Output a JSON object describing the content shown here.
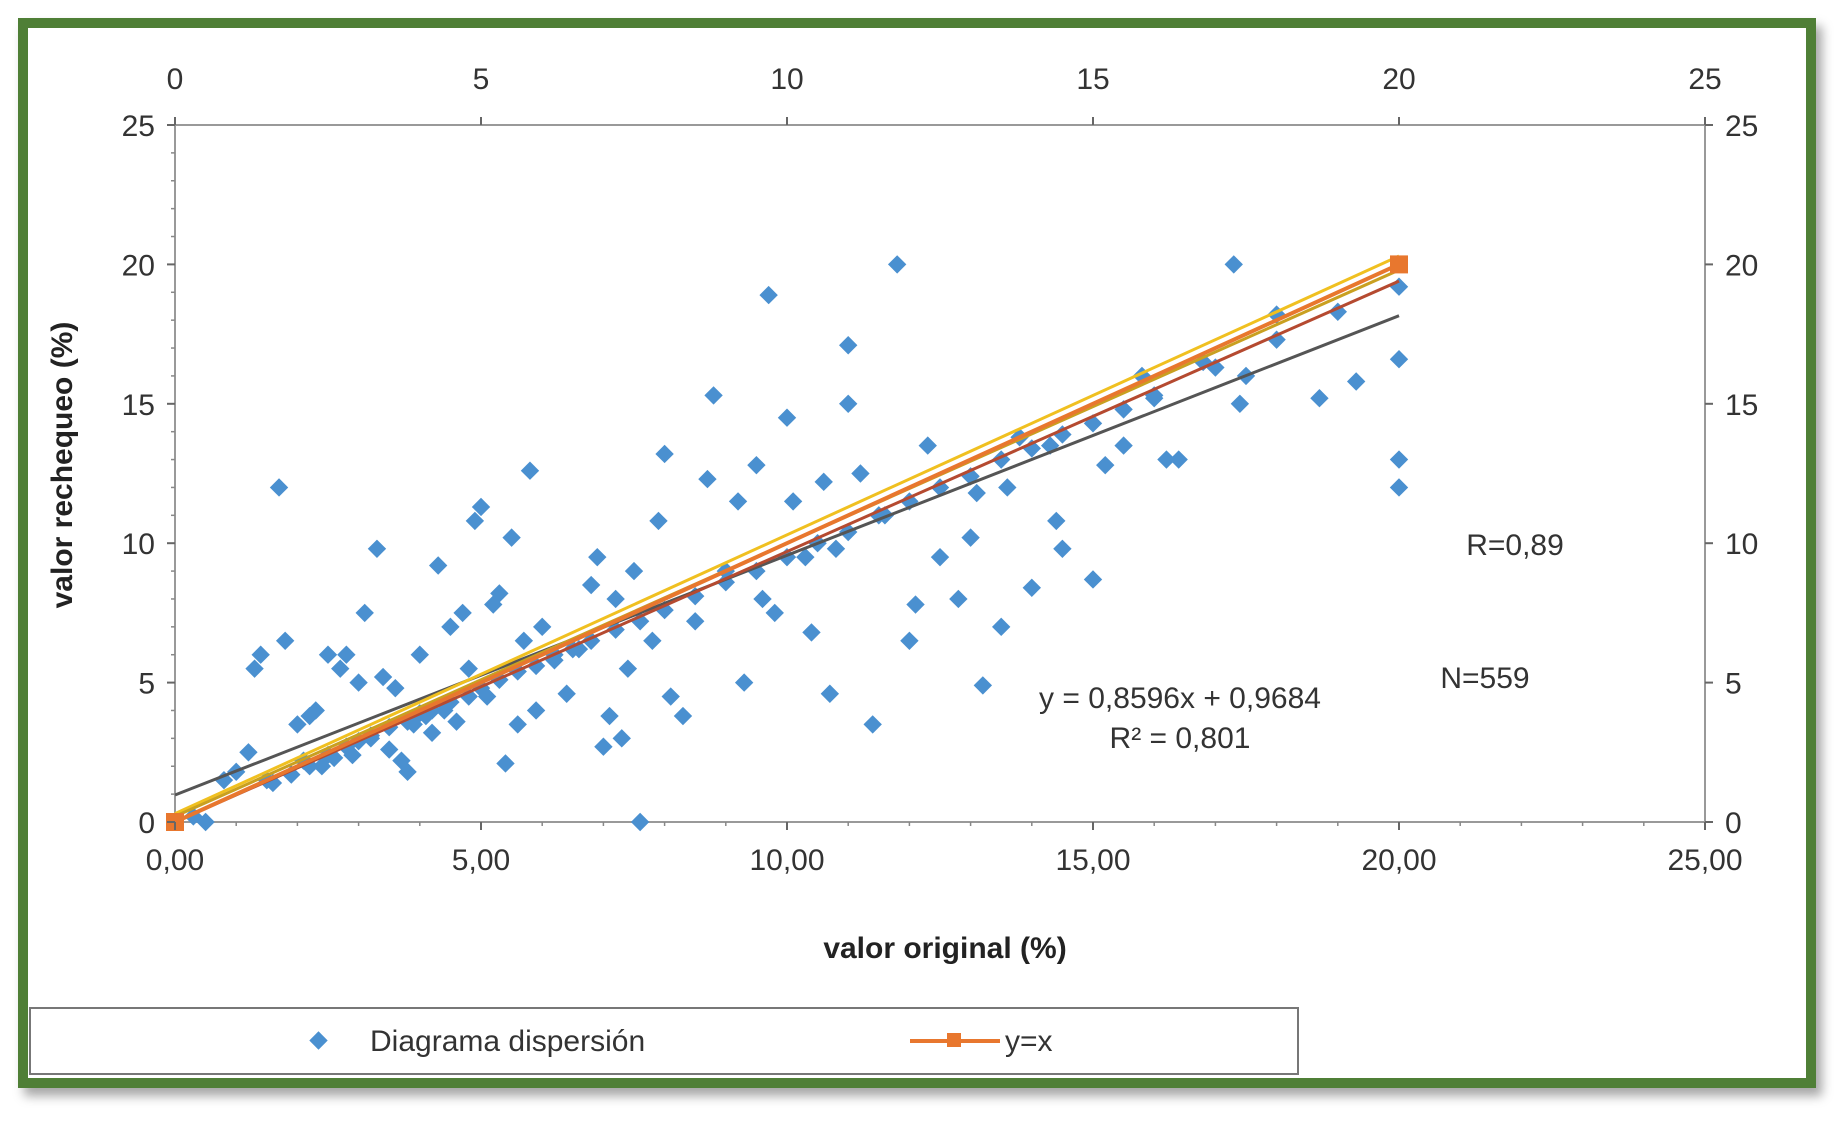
{
  "chart_data": {
    "type": "scatter",
    "xlabel": "valor original (%)",
    "ylabel": "valor rechequeo (%)",
    "xlim": [
      0,
      25
    ],
    "ylim": [
      0,
      25
    ],
    "x_ticks": [
      "0,00",
      "5,00",
      "10,00",
      "15,00",
      "20,00",
      "25,00"
    ],
    "y_ticks": [
      "0",
      "5",
      "10",
      "15",
      "20",
      "25"
    ],
    "x2_ticks": [
      "0",
      "5",
      "10",
      "15",
      "20",
      "25"
    ],
    "y2_ticks": [
      "0",
      "5",
      "10",
      "15",
      "20",
      "25"
    ],
    "grid": false,
    "legend_position": "bottom",
    "annotations": {
      "equation": "y = 0,8596x + 0,9684",
      "r_squared": "R² = 0,801",
      "r": "R=0,89",
      "n": "N=559"
    },
    "series": [
      {
        "name": "Diagrama dispersión",
        "kind": "scatter",
        "color": "#4a90d0",
        "points": [
          [
            0.3,
            0.2
          ],
          [
            0.5,
            0.0
          ],
          [
            0.8,
            1.5
          ],
          [
            1.0,
            1.8
          ],
          [
            1.2,
            2.5
          ],
          [
            1.3,
            5.5
          ],
          [
            1.4,
            6.0
          ],
          [
            1.5,
            1.5
          ],
          [
            1.6,
            1.4
          ],
          [
            1.7,
            12.0
          ],
          [
            1.8,
            6.5
          ],
          [
            1.9,
            1.7
          ],
          [
            2.0,
            3.5
          ],
          [
            2.1,
            2.2
          ],
          [
            2.2,
            3.8
          ],
          [
            2.3,
            4.0
          ],
          [
            2.4,
            2.0
          ],
          [
            2.5,
            6.0
          ],
          [
            2.6,
            2.3
          ],
          [
            2.7,
            5.5
          ],
          [
            2.8,
            6.0
          ],
          [
            2.9,
            2.4
          ],
          [
            3.0,
            5.0
          ],
          [
            3.1,
            7.5
          ],
          [
            3.2,
            3.0
          ],
          [
            3.3,
            9.8
          ],
          [
            3.4,
            5.2
          ],
          [
            3.5,
            2.6
          ],
          [
            3.6,
            4.8
          ],
          [
            3.7,
            2.2
          ],
          [
            3.8,
            1.8
          ],
          [
            3.9,
            3.5
          ],
          [
            4.0,
            6.0
          ],
          [
            4.1,
            3.8
          ],
          [
            4.2,
            3.2
          ],
          [
            4.3,
            9.2
          ],
          [
            4.4,
            4.0
          ],
          [
            4.5,
            7.0
          ],
          [
            4.6,
            3.6
          ],
          [
            4.7,
            7.5
          ],
          [
            4.8,
            5.5
          ],
          [
            4.9,
            10.8
          ],
          [
            5.0,
            11.3
          ],
          [
            5.1,
            4.5
          ],
          [
            5.2,
            7.8
          ],
          [
            5.3,
            8.2
          ],
          [
            5.4,
            2.1
          ],
          [
            5.5,
            10.2
          ],
          [
            5.6,
            3.5
          ],
          [
            5.7,
            6.5
          ],
          [
            5.8,
            12.6
          ],
          [
            5.9,
            4.0
          ],
          [
            6.0,
            7.0
          ],
          [
            6.2,
            5.8
          ],
          [
            6.4,
            4.6
          ],
          [
            6.6,
            6.2
          ],
          [
            6.8,
            8.5
          ],
          [
            6.9,
            9.5
          ],
          [
            7.0,
            2.7
          ],
          [
            7.1,
            3.8
          ],
          [
            7.2,
            8.0
          ],
          [
            7.3,
            3.0
          ],
          [
            7.4,
            5.5
          ],
          [
            7.5,
            9.0
          ],
          [
            7.6,
            0.0
          ],
          [
            7.8,
            6.5
          ],
          [
            7.9,
            10.8
          ],
          [
            8.0,
            13.2
          ],
          [
            8.1,
            4.5
          ],
          [
            8.3,
            3.8
          ],
          [
            8.5,
            7.2
          ],
          [
            8.7,
            12.3
          ],
          [
            8.8,
            15.3
          ],
          [
            9.0,
            9.0
          ],
          [
            9.2,
            11.5
          ],
          [
            9.3,
            5.0
          ],
          [
            9.5,
            12.8
          ],
          [
            9.6,
            8.0
          ],
          [
            9.7,
            18.9
          ],
          [
            9.8,
            7.5
          ],
          [
            10.0,
            14.5
          ],
          [
            10.1,
            11.5
          ],
          [
            10.3,
            9.5
          ],
          [
            10.4,
            6.8
          ],
          [
            10.6,
            12.2
          ],
          [
            10.7,
            4.6
          ],
          [
            10.8,
            9.8
          ],
          [
            11.0,
            17.1
          ],
          [
            11.0,
            15.0
          ],
          [
            11.2,
            12.5
          ],
          [
            11.4,
            3.5
          ],
          [
            11.6,
            11.0
          ],
          [
            11.8,
            20.0
          ],
          [
            12.0,
            6.5
          ],
          [
            12.1,
            7.8
          ],
          [
            12.3,
            13.5
          ],
          [
            12.5,
            9.5
          ],
          [
            12.8,
            8.0
          ],
          [
            13.0,
            10.2
          ],
          [
            13.1,
            11.8
          ],
          [
            13.2,
            4.9
          ],
          [
            13.5,
            7.0
          ],
          [
            13.6,
            12.0
          ],
          [
            13.8,
            13.8
          ],
          [
            14.0,
            8.4
          ],
          [
            14.3,
            13.5
          ],
          [
            14.4,
            10.8
          ],
          [
            14.5,
            9.8
          ],
          [
            15.0,
            8.7
          ],
          [
            15.2,
            12.8
          ],
          [
            15.5,
            13.5
          ],
          [
            15.8,
            16.0
          ],
          [
            16.0,
            15.2
          ],
          [
            16.2,
            13.0
          ],
          [
            16.4,
            13.0
          ],
          [
            16.8,
            16.5
          ],
          [
            17.3,
            20.0
          ],
          [
            17.4,
            15.0
          ],
          [
            17.5,
            16.0
          ],
          [
            18.0,
            18.2
          ],
          [
            18.7,
            15.2
          ],
          [
            19.3,
            15.8
          ],
          [
            20.0,
            19.2
          ],
          [
            20.0,
            16.6
          ],
          [
            20.0,
            13.0
          ],
          [
            20.0,
            12.0
          ],
          [
            2.2,
            2.0
          ],
          [
            2.5,
            2.4
          ],
          [
            2.8,
            2.7
          ],
          [
            3.0,
            2.9
          ],
          [
            3.2,
            3.1
          ],
          [
            3.5,
            3.4
          ],
          [
            3.8,
            3.6
          ],
          [
            4.0,
            3.9
          ],
          [
            4.2,
            4.0
          ],
          [
            4.5,
            4.3
          ],
          [
            4.8,
            4.5
          ],
          [
            5.0,
            4.8
          ],
          [
            5.3,
            5.1
          ],
          [
            5.6,
            5.4
          ],
          [
            5.9,
            5.6
          ],
          [
            6.2,
            6.0
          ],
          [
            6.5,
            6.2
          ],
          [
            6.8,
            6.5
          ],
          [
            7.2,
            6.9
          ],
          [
            7.6,
            7.2
          ],
          [
            8.0,
            7.6
          ],
          [
            8.5,
            8.1
          ],
          [
            9.0,
            8.6
          ],
          [
            9.5,
            9.0
          ],
          [
            10.0,
            9.5
          ],
          [
            10.5,
            10.0
          ],
          [
            11.0,
            10.4
          ],
          [
            11.5,
            11.0
          ],
          [
            12.0,
            11.5
          ],
          [
            12.5,
            12.0
          ],
          [
            13.0,
            12.4
          ],
          [
            13.5,
            13.0
          ],
          [
            14.0,
            13.4
          ],
          [
            14.5,
            13.9
          ],
          [
            15.0,
            14.3
          ],
          [
            15.5,
            14.8
          ],
          [
            16.0,
            15.3
          ],
          [
            17.0,
            16.3
          ],
          [
            18.0,
            17.3
          ],
          [
            19.0,
            18.3
          ]
        ]
      },
      {
        "name": "y=x",
        "kind": "line",
        "color": "#e8772e",
        "x": [
          0,
          20
        ],
        "y": [
          0,
          20
        ]
      }
    ],
    "extra_lines": [
      {
        "slope": 0.8596,
        "intercept": 0.9684,
        "color": "#555555"
      },
      {
        "slope": 1.0,
        "intercept": 0.3,
        "color": "#f0c020"
      },
      {
        "slope": 0.98,
        "intercept": 0.2,
        "color": "#c9a020"
      },
      {
        "slope": 0.97,
        "intercept": 0.0,
        "color": "#b54a30"
      }
    ]
  }
}
